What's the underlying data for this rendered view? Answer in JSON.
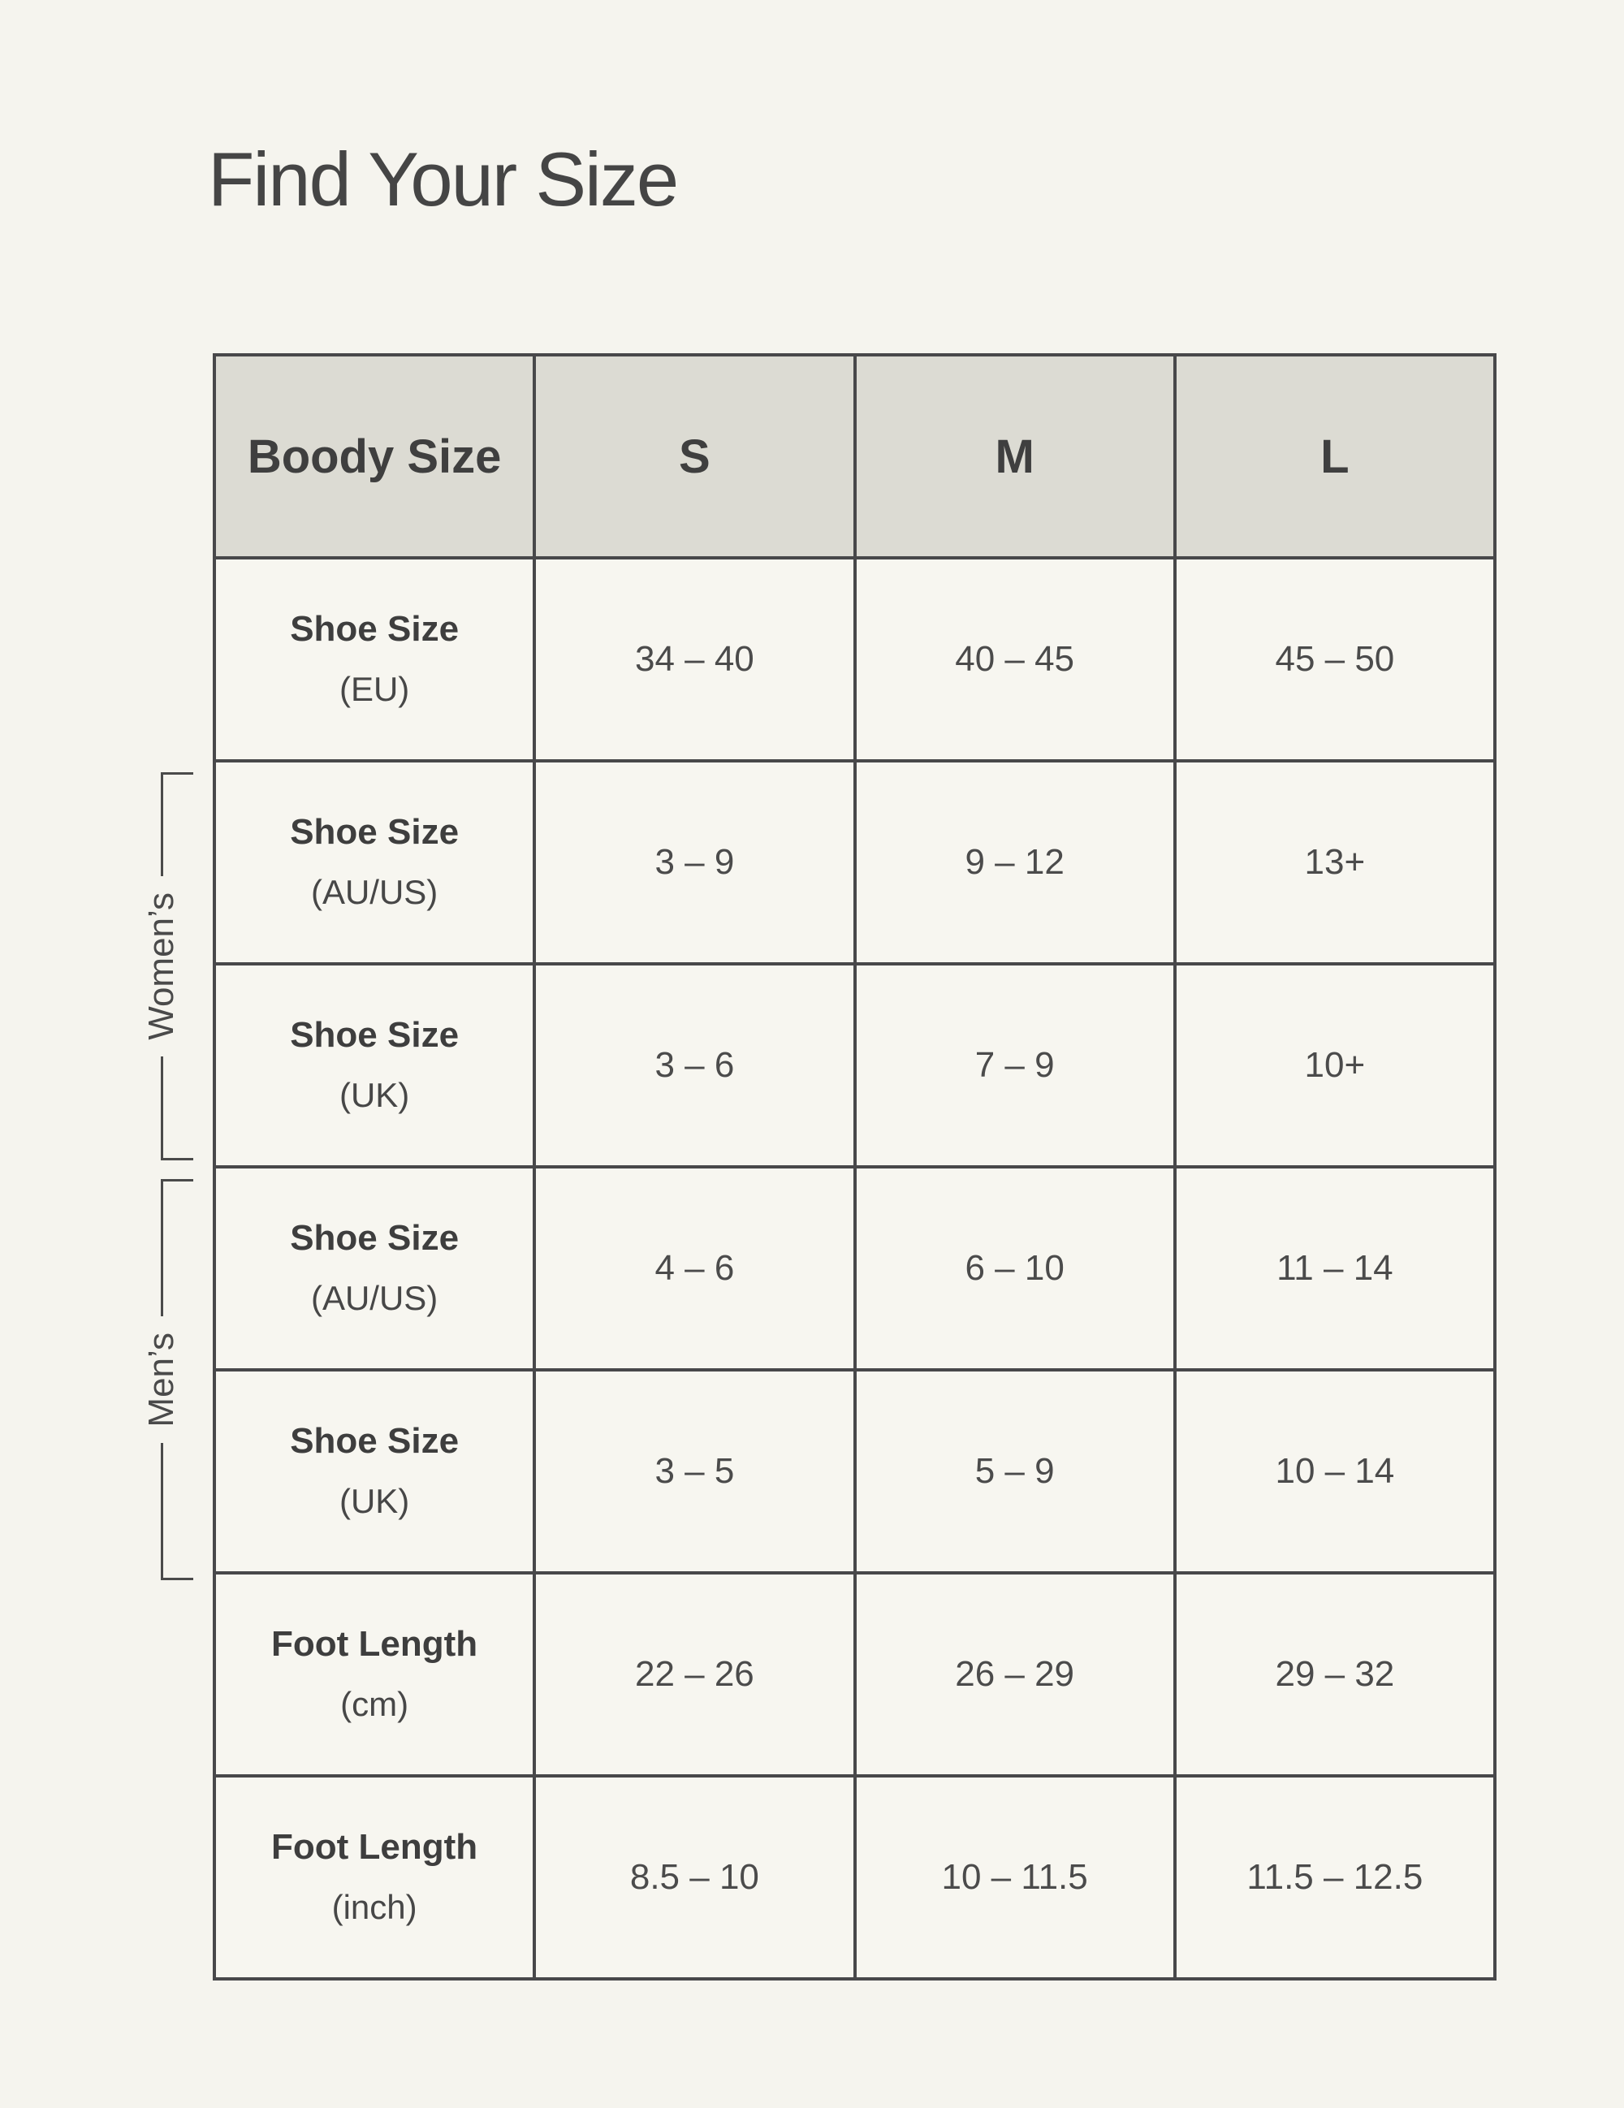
{
  "page": {
    "title": "Find Your Size"
  },
  "colors": {
    "bg": "#f5f4ee",
    "cell-bg": "#f7f6f0",
    "header-bg": "#dcdbd3",
    "border": "#48484a",
    "ink": "#3f3f3f",
    "value-ink": "#4b4b4b",
    "bracket": "#4a4a4a"
  },
  "size_chart": {
    "header": {
      "label": "Boody Size",
      "sizes": [
        "S",
        "M",
        "L"
      ]
    },
    "groups": {
      "womens": "Women’s",
      "mens": "Men’s"
    },
    "rows": [
      {
        "name": "Shoe Size",
        "unit": "(EU)",
        "values": [
          "34 – 40",
          "40 – 45",
          "45 – 50"
        ]
      },
      {
        "name": "Shoe Size",
        "unit": "(AU/US)",
        "values": [
          "3 – 9",
          "9 – 12",
          "13+"
        ]
      },
      {
        "name": "Shoe Size",
        "unit": "(UK)",
        "values": [
          "3 – 6",
          "7 – 9",
          "10+"
        ]
      },
      {
        "name": "Shoe Size",
        "unit": "(AU/US)",
        "values": [
          "4 – 6",
          "6 – 10",
          "11 – 14"
        ]
      },
      {
        "name": "Shoe Size",
        "unit": "(UK)",
        "values": [
          "3 – 5",
          "5 – 9",
          "10 – 14"
        ]
      },
      {
        "name": "Foot Length",
        "unit": "(cm)",
        "values": [
          "22 – 26",
          "26 – 29",
          "29 – 32"
        ]
      },
      {
        "name": "Foot Length",
        "unit": "(inch)",
        "values": [
          "8.5 – 10",
          "10 – 11.5",
          "11.5 – 12.5"
        ]
      }
    ]
  }
}
